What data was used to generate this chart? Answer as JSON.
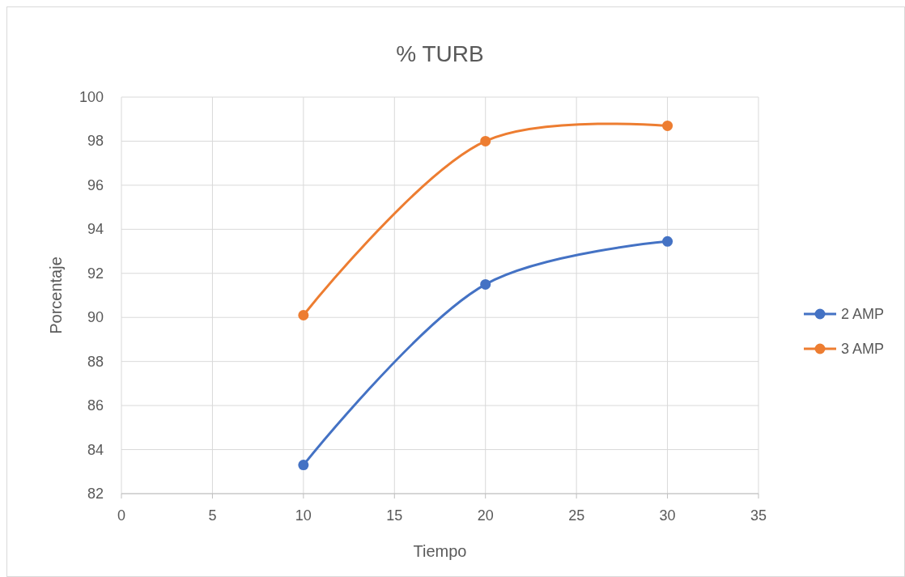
{
  "chart_data": {
    "type": "line",
    "title": "% TURB",
    "xlabel": "Tiempo",
    "ylabel": "Porcentaje",
    "x": [
      10,
      20,
      30
    ],
    "series": [
      {
        "name": "2 AMP",
        "color": "#4472c4",
        "values": [
          83.3,
          91.5,
          93.45
        ]
      },
      {
        "name": "3 AMP",
        "color": "#ed7d31",
        "values": [
          90.1,
          98.0,
          98.7
        ]
      }
    ],
    "xlim": [
      0,
      35
    ],
    "xticks": [
      0,
      5,
      10,
      15,
      20,
      25,
      30,
      35
    ],
    "ylim": [
      82,
      100
    ],
    "yticks": [
      82,
      84,
      86,
      88,
      90,
      92,
      94,
      96,
      98,
      100
    ],
    "grid": true,
    "legend": "right",
    "marker": "circle",
    "line_style": "solid"
  }
}
